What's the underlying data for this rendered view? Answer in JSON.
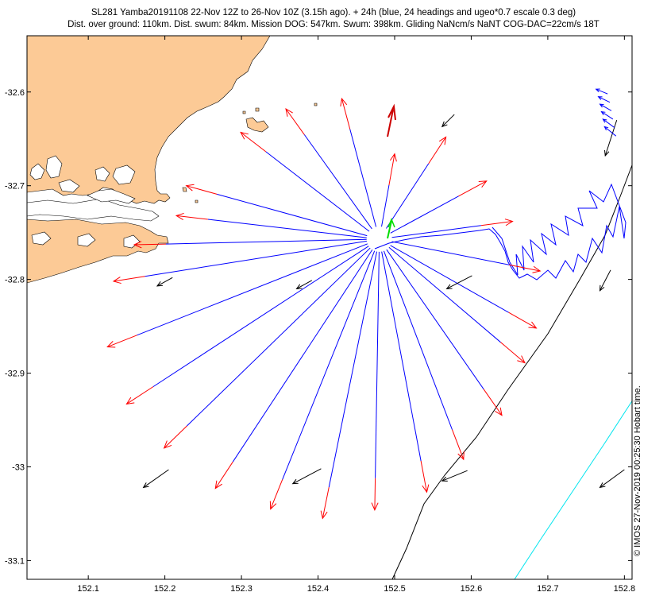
{
  "chart_data": {
    "type": "map",
    "title_line1": "SL281 Yamba20191108 22-Nov 12Z to 26-Nov 10Z (3.15h ago). + 24h (blue, 24 headings and ugeo*0.7 escale 0.3 deg)",
    "title_line2": "Dist. over ground: 110km. Dist. swum: 84km. Mission DOG: 547km. Swum: 398km. Gliding NaNcm/s NaNT COG-DAC=22cm/s 18T",
    "credit": "© IMOS 27-Nov-2019 00:25:30 Hobart time.",
    "xlim": [
      152.02,
      152.81
    ],
    "ylim": [
      -33.12,
      -32.54
    ],
    "xticks": [
      152.1,
      152.2,
      152.3,
      152.4,
      152.5,
      152.6,
      152.7,
      152.8
    ],
    "xtick_labels": [
      "152.1",
      "152.2",
      "152.3",
      "152.4",
      "152.5",
      "152.6",
      "152.7",
      "152.8"
    ],
    "yticks": [
      -32.6,
      -32.7,
      -32.8,
      -32.9,
      -33.0,
      -33.1
    ],
    "ytick_labels": [
      "-32.6",
      "-32.7",
      "-32.8",
      "-32.9",
      "-33",
      "-33.1"
    ],
    "colors": {
      "land": "#fcca96",
      "heading_line": "#0000ff",
      "heading_arrow": "#ff0000",
      "current": "#000000",
      "track": "#0000ff",
      "last_segment": "#00ee00",
      "recent_arrow": "#cc0000",
      "contour_black": "#000000",
      "contour_cyan": "#00e5ee"
    },
    "glider_position": [
      152.48,
      -32.757
    ],
    "heading_endpoints": [
      [
        152.5,
        -32.666
      ],
      [
        152.567,
        -32.648
      ],
      [
        152.62,
        -32.695
      ],
      [
        152.654,
        -32.738
      ],
      [
        152.69,
        -32.791
      ],
      [
        152.685,
        -32.852
      ],
      [
        152.67,
        -32.889
      ],
      [
        152.64,
        -32.945
      ],
      [
        152.59,
        -32.992
      ],
      [
        152.542,
        -33.027
      ],
      [
        152.474,
        -33.046
      ],
      [
        152.406,
        -33.055
      ],
      [
        152.338,
        -33.045
      ],
      [
        152.266,
        -33.023
      ],
      [
        152.199,
        -32.98
      ],
      [
        152.15,
        -32.933
      ],
      [
        152.125,
        -32.872
      ],
      [
        152.133,
        -32.802
      ],
      [
        152.16,
        -32.763
      ],
      [
        152.215,
        -32.732
      ],
      [
        152.228,
        -32.7
      ],
      [
        152.299,
        -32.643
      ],
      [
        152.358,
        -32.618
      ],
      [
        152.431,
        -32.607
      ]
    ],
    "current_arrows": [
      [
        152.578,
        -32.624,
        152.562,
        -32.637
      ],
      [
        152.79,
        -32.63,
        152.775,
        -32.668
      ],
      [
        152.782,
        -32.79,
        152.768,
        -32.812
      ],
      [
        152.21,
        -32.798,
        152.19,
        -32.807
      ],
      [
        152.392,
        -32.801,
        152.372,
        -32.81
      ],
      [
        152.601,
        -32.796,
        152.568,
        -32.81
      ],
      [
        152.205,
        -33.003,
        152.172,
        -33.022
      ],
      [
        152.404,
        -33.002,
        152.367,
        -33.018
      ],
      [
        152.595,
        -33.004,
        152.562,
        -33.015
      ],
      [
        152.8,
        -33.003,
        152.768,
        -33.022
      ]
    ],
    "swim_arrows": [
      [
        152.778,
        -32.602,
        152.763,
        -32.597
      ],
      [
        152.781,
        -32.611,
        152.766,
        -32.605
      ],
      [
        152.783,
        -32.62,
        152.768,
        -32.613
      ],
      [
        152.785,
        -32.629,
        152.77,
        -32.621
      ],
      [
        152.787,
        -32.638,
        152.772,
        -32.629
      ],
      [
        152.789,
        -32.647,
        152.774,
        -32.637
      ]
    ]
  }
}
